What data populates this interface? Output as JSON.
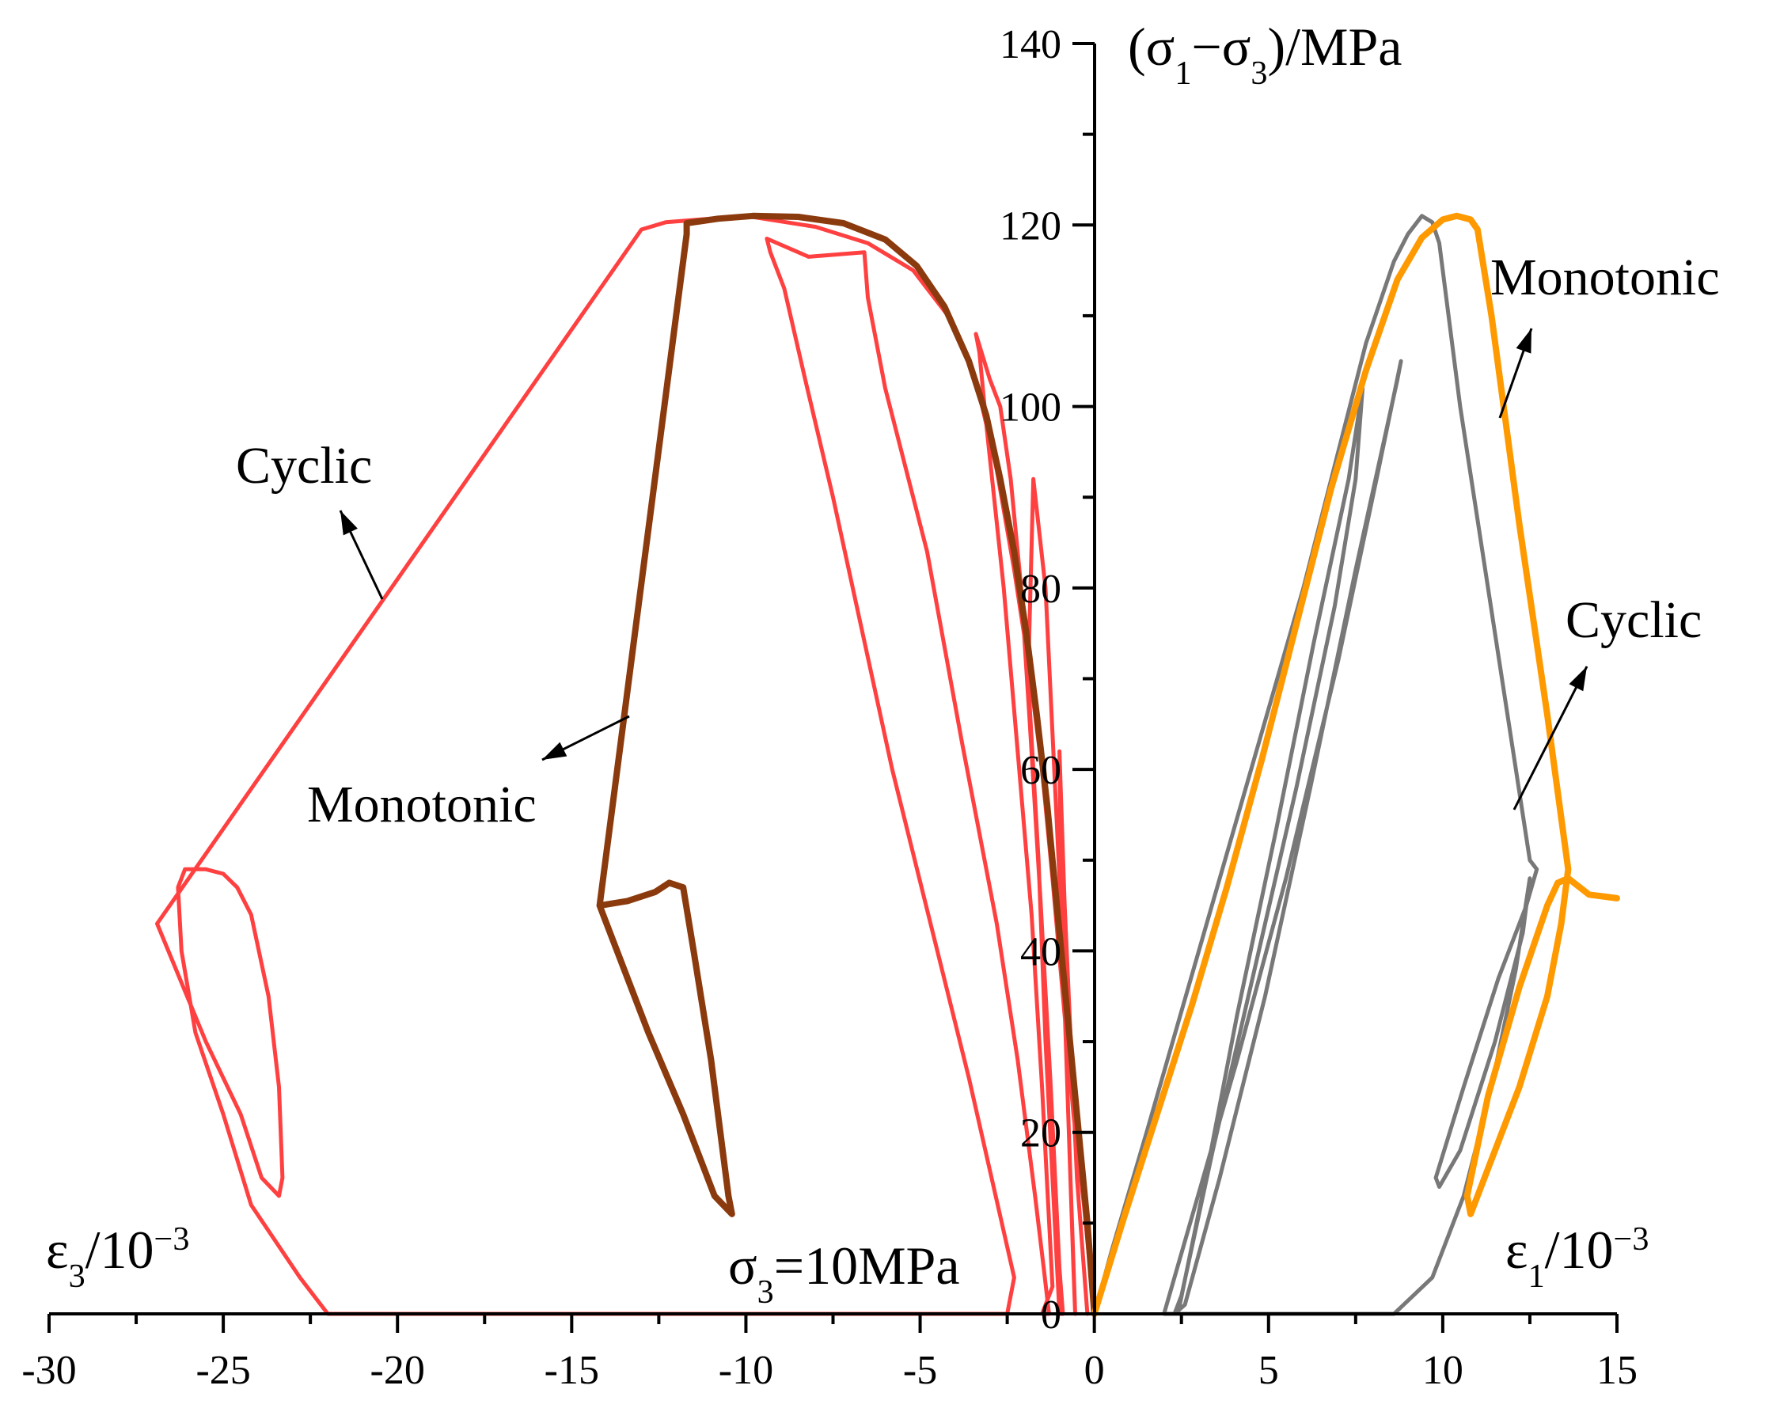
{
  "chart_data": {
    "type": "line",
    "title": "",
    "x_axis": {
      "ticks": [
        -30,
        -25,
        -20,
        -15,
        -10,
        -5,
        0,
        5,
        10,
        15
      ],
      "tick_labels": [
        "-30",
        "-25",
        "-20",
        "-15",
        "-10",
        "-5",
        "0",
        "5",
        "10",
        "15"
      ],
      "range": [
        -30,
        15
      ],
      "left_label_main": "ε",
      "left_label_sub": "3",
      "left_label_rest": "/10",
      "left_label_sup": "−3",
      "right_label_main": "ε",
      "right_label_sub": "1",
      "right_label_rest": "/10",
      "right_label_sup": "−3"
    },
    "y_axis": {
      "ticks": [
        0,
        20,
        40,
        60,
        80,
        100,
        120,
        140
      ],
      "tick_labels": [
        "0",
        "20",
        "40",
        "60",
        "80",
        "100",
        "120",
        "140"
      ],
      "range": [
        0,
        140
      ],
      "label_open": "(σ",
      "label_sub1": "1",
      "label_mid": "−σ",
      "label_sub2": "3",
      "label_close": ")/MPa"
    },
    "confining_pressure_label": {
      "main": "σ",
      "sub": "3",
      "rest": "=10MPa"
    },
    "annotations": [
      {
        "text": "Cyclic",
        "curve": "cyclic_eps3"
      },
      {
        "text": "Monotonic",
        "curve": "monotonic_eps3"
      },
      {
        "text": "Monotonic",
        "curve": "monotonic_eps1"
      },
      {
        "text": "Cyclic",
        "curve": "cyclic_eps1"
      }
    ],
    "series": [
      {
        "name": "cyclic_eps3",
        "color": "#FF4040",
        "points": [
          [
            0,
            0
          ],
          [
            -0.3,
            12
          ],
          [
            -0.6,
            22
          ],
          [
            -0.9,
            35
          ],
          [
            -1.2,
            48
          ],
          [
            -1.5,
            60
          ],
          [
            -1.9,
            72
          ],
          [
            -2.3,
            82
          ],
          [
            -2.8,
            93
          ],
          [
            -3.4,
            103
          ],
          [
            -4.2,
            110
          ],
          [
            -5.2,
            115
          ],
          [
            -6.5,
            118
          ],
          [
            -8,
            119.8
          ],
          [
            -10,
            121
          ],
          [
            -12.3,
            120.3
          ],
          [
            -13,
            119.5
          ],
          [
            -26.9,
            43
          ],
          [
            -25.5,
            30
          ],
          [
            -24.5,
            22
          ],
          [
            -23.9,
            15
          ],
          [
            -23.4,
            13
          ],
          [
            -23.3,
            15
          ],
          [
            -23.4,
            25
          ],
          [
            -23.7,
            35
          ],
          [
            -24.2,
            44
          ],
          [
            -24.6,
            47
          ],
          [
            -25,
            48.5
          ],
          [
            -25.5,
            49
          ],
          [
            -26.1,
            49
          ],
          [
            -26.3,
            47
          ],
          [
            -26.2,
            40
          ],
          [
            -25.8,
            31
          ],
          [
            -25,
            22
          ],
          [
            -24.2,
            12
          ],
          [
            -22.8,
            4
          ],
          [
            -22,
            0
          ],
          [
            -20,
            0
          ],
          [
            -2.5,
            0
          ],
          [
            -2.3,
            4
          ],
          [
            -3.6,
            26
          ],
          [
            -5.8,
            60
          ],
          [
            -7.5,
            90
          ],
          [
            -8.3,
            103
          ],
          [
            -8.9,
            113
          ],
          [
            -9.3,
            117
          ],
          [
            -9.4,
            118.5
          ],
          [
            -8.2,
            116.5
          ],
          [
            -6.6,
            117
          ],
          [
            -6.5,
            112
          ],
          [
            -6,
            102
          ],
          [
            -4.8,
            84
          ],
          [
            -3.8,
            63
          ],
          [
            -2.8,
            43
          ],
          [
            -2.2,
            28
          ],
          [
            -1.7,
            13
          ],
          [
            -1.45,
            5
          ],
          [
            -1.3,
            0
          ],
          [
            -1.5,
            0
          ],
          [
            -1.2,
            3
          ],
          [
            -1.5,
            25
          ],
          [
            -1.8,
            44
          ],
          [
            -2.2,
            62
          ],
          [
            -2.6,
            80
          ],
          [
            -3.1,
            98
          ],
          [
            -3.3,
            106
          ],
          [
            -3.4,
            108
          ],
          [
            -3.0,
            103
          ],
          [
            -2.7,
            100
          ],
          [
            -2.4,
            92
          ],
          [
            -2.1,
            80
          ],
          [
            -1.85,
            65
          ],
          [
            -1.55,
            46
          ],
          [
            -1.25,
            25
          ],
          [
            -1.0,
            5
          ],
          [
            -0.9,
            0
          ],
          [
            -1.0,
            0
          ],
          [
            -1.4,
            30
          ],
          [
            -1.6,
            50
          ],
          [
            -1.9,
            70
          ],
          [
            -1.75,
            92
          ],
          [
            -1.4,
            80
          ],
          [
            -1.15,
            60
          ],
          [
            -0.9,
            40
          ],
          [
            -0.75,
            22
          ],
          [
            -0.6,
            5
          ],
          [
            -0.55,
            0
          ],
          [
            -0.75,
            22
          ],
          [
            -0.95,
            45
          ],
          [
            -1.0,
            62
          ],
          [
            -0.85,
            45
          ],
          [
            -0.5,
            15
          ],
          [
            -0.2,
            0
          ]
        ]
      },
      {
        "name": "monotonic_eps3",
        "color": "#8B3A0E",
        "points": [
          [
            0,
            0
          ],
          [
            -0.2,
            10
          ],
          [
            -0.45,
            20
          ],
          [
            -0.75,
            32
          ],
          [
            -1.05,
            44
          ],
          [
            -1.35,
            56
          ],
          [
            -1.65,
            66
          ],
          [
            -1.95,
            75
          ],
          [
            -2.3,
            84
          ],
          [
            -2.7,
            92
          ],
          [
            -3.1,
            99
          ],
          [
            -3.6,
            105
          ],
          [
            -4.3,
            111
          ],
          [
            -5.1,
            115.5
          ],
          [
            -6.0,
            118.4
          ],
          [
            -7.2,
            120.2
          ],
          [
            -8.5,
            120.9
          ],
          [
            -9.8,
            121
          ],
          [
            -10.8,
            120.7
          ],
          [
            -11.7,
            120.2
          ],
          [
            -11.7,
            119
          ],
          [
            -14.2,
            45
          ],
          [
            -13.4,
            45.5
          ],
          [
            -12.6,
            46.5
          ],
          [
            -12.2,
            47.5
          ],
          [
            -11.8,
            47
          ],
          [
            -11.5,
            40
          ],
          [
            -11,
            28
          ],
          [
            -10.5,
            13
          ],
          [
            -10.4,
            11
          ],
          [
            -10.9,
            13
          ],
          [
            -11.8,
            22
          ],
          [
            -12.8,
            31
          ],
          [
            -14.2,
            45
          ]
        ]
      },
      {
        "name": "cyclic_eps1",
        "color": "#787878",
        "points": [
          [
            0,
            0
          ],
          [
            0.5,
            7
          ],
          [
            1.5,
            20
          ],
          [
            3.0,
            40
          ],
          [
            4.5,
            60
          ],
          [
            6.0,
            80
          ],
          [
            7.0,
            95
          ],
          [
            7.8,
            107
          ],
          [
            8.6,
            116
          ],
          [
            9.0,
            119
          ],
          [
            9.4,
            121
          ],
          [
            9.7,
            120.3
          ],
          [
            9.9,
            118
          ],
          [
            10.5,
            100
          ],
          [
            11.5,
            75
          ],
          [
            12.5,
            50
          ],
          [
            12.7,
            49
          ],
          [
            12.4,
            45
          ],
          [
            11.6,
            37
          ],
          [
            10.6,
            25
          ],
          [
            9.8,
            15
          ],
          [
            9.9,
            14
          ],
          [
            10.5,
            18
          ],
          [
            11.5,
            30
          ],
          [
            12.3,
            42
          ],
          [
            12.5,
            48
          ],
          [
            12.1,
            38
          ],
          [
            11.4,
            25
          ],
          [
            10.6,
            13
          ],
          [
            9.7,
            4
          ],
          [
            8.6,
            0
          ],
          [
            2.0,
            0
          ],
          [
            2.9,
            12
          ],
          [
            4.1,
            28
          ],
          [
            5.5,
            48
          ],
          [
            7.0,
            72
          ],
          [
            8.1,
            92
          ],
          [
            8.8,
            105
          ],
          [
            8.7,
            103
          ],
          [
            7.5,
            82
          ],
          [
            6.2,
            58
          ],
          [
            4.9,
            35
          ],
          [
            3.6,
            15
          ],
          [
            2.6,
            1
          ],
          [
            2.3,
            0
          ],
          [
            2.5,
            2
          ],
          [
            3.4,
            18
          ],
          [
            4.6,
            38
          ],
          [
            5.8,
            58
          ],
          [
            6.9,
            78
          ],
          [
            7.5,
            92
          ],
          [
            7.7,
            102
          ],
          [
            7.3,
            92
          ],
          [
            6.3,
            74
          ],
          [
            5.2,
            53
          ],
          [
            4.1,
            33
          ],
          [
            3.2,
            15
          ],
          [
            2.4,
            0
          ]
        ]
      },
      {
        "name": "monotonic_eps1",
        "color": "#FF9900",
        "points": [
          [
            0,
            0
          ],
          [
            0.8,
            10
          ],
          [
            1.8,
            22
          ],
          [
            2.8,
            34
          ],
          [
            3.8,
            47
          ],
          [
            4.8,
            61
          ],
          [
            5.8,
            76
          ],
          [
            6.8,
            91
          ],
          [
            7.8,
            104
          ],
          [
            8.7,
            114
          ],
          [
            9.4,
            118.6
          ],
          [
            10.0,
            120.6
          ],
          [
            10.4,
            121
          ],
          [
            10.8,
            120.6
          ],
          [
            11.0,
            119.5
          ],
          [
            11.4,
            110
          ],
          [
            12.2,
            87
          ],
          [
            13.0,
            66
          ],
          [
            13.6,
            49
          ],
          [
            13.5,
            46
          ],
          [
            13.4,
            43
          ],
          [
            13.0,
            35
          ],
          [
            12.2,
            25
          ],
          [
            11.4,
            17
          ],
          [
            10.8,
            11
          ],
          [
            10.7,
            13
          ],
          [
            11.3,
            24
          ],
          [
            12.2,
            36
          ],
          [
            13.0,
            45
          ],
          [
            13.3,
            47.5
          ],
          [
            13.6,
            48
          ],
          [
            14.2,
            46.2
          ],
          [
            15,
            45.8
          ]
        ]
      }
    ]
  }
}
